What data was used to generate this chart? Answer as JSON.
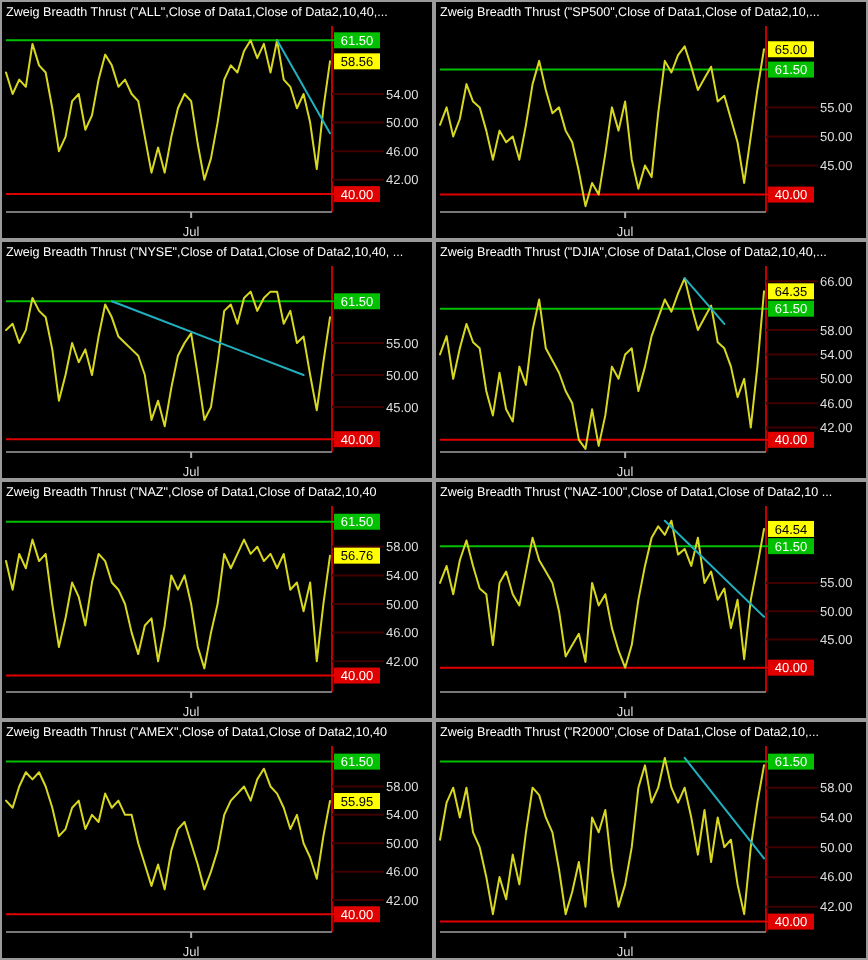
{
  "chart_data": [
    {
      "type": "line",
      "title": "Zweig Breadth Thrust (\"ALL\",Close of Data1,Close of Data2,10,40,...",
      "categories": [
        null,
        null,
        null,
        null,
        null,
        null,
        null,
        null,
        null,
        null,
        null,
        null,
        null,
        null,
        null,
        null,
        null,
        null,
        null,
        null,
        null,
        null,
        null,
        null,
        null,
        null,
        null,
        null,
        "Jul",
        null,
        null,
        null,
        null,
        null,
        null,
        null,
        null,
        null,
        null,
        null,
        null,
        null,
        null,
        null,
        null,
        null,
        null,
        null,
        null,
        null
      ],
      "ylim": [
        37.5,
        63.5
      ],
      "yticks": [
        {
          "value": 42,
          "label": "42.00"
        },
        {
          "value": 46,
          "label": "46.00"
        },
        {
          "value": 50,
          "label": "50.00"
        },
        {
          "value": 54,
          "label": "54.00"
        }
      ],
      "ref_lines": [
        {
          "axis": "y",
          "value": 61.5,
          "label": "61.50",
          "color": "#00c000"
        },
        {
          "axis": "y",
          "value": 40,
          "label": "40.00",
          "color": "#e00000"
        }
      ],
      "series": [
        {
          "type": "line",
          "color": "#d8d820",
          "values": [
            57,
            54,
            56,
            55,
            61,
            58,
            57,
            52,
            46,
            48,
            53,
            54,
            49,
            51,
            56,
            59.5,
            58,
            55,
            56,
            54,
            53,
            48,
            43,
            46.5,
            43,
            48,
            52,
            54,
            53,
            47,
            42,
            45,
            50,
            56,
            58,
            57,
            60,
            61.5,
            59,
            61,
            57,
            61.5,
            56,
            55,
            52,
            54,
            50,
            43.5,
            52,
            58.56
          ],
          "value_labels": [
            null,
            null,
            null,
            null,
            null,
            null,
            null,
            null,
            null,
            null,
            null,
            null,
            null,
            null,
            null,
            null,
            null,
            null,
            null,
            null,
            null,
            null,
            null,
            null,
            null,
            null,
            null,
            null,
            null,
            null,
            null,
            null,
            null,
            null,
            null,
            null,
            null,
            null,
            null,
            null,
            null,
            null,
            null,
            null,
            null,
            null,
            null,
            null,
            null,
            "58.56"
          ]
        },
        {
          "type": "line",
          "color": "#20b0c0",
          "values": [
            null,
            null,
            null,
            null,
            null,
            null,
            null,
            null,
            null,
            null,
            null,
            null,
            null,
            null,
            null,
            null,
            null,
            null,
            null,
            null,
            null,
            null,
            null,
            null,
            null,
            null,
            null,
            null,
            null,
            null,
            null,
            null,
            null,
            null,
            null,
            null,
            null,
            null,
            null,
            null,
            null,
            61.5,
            null,
            null,
            null,
            null,
            null,
            null,
            null,
            48.5
          ]
        }
      ]
    },
    {
      "type": "line",
      "title": "Zweig Breadth Thrust (\"SP500\",Close of Data1,Close of Data2,10,...",
      "categories": [
        null,
        null,
        null,
        null,
        null,
        null,
        null,
        null,
        null,
        null,
        null,
        null,
        null,
        null,
        null,
        null,
        null,
        null,
        null,
        null,
        null,
        null,
        null,
        null,
        null,
        null,
        null,
        null,
        "Jul",
        null,
        null,
        null,
        null,
        null,
        null,
        null,
        null,
        null,
        null,
        null,
        null,
        null,
        null,
        null,
        null,
        null,
        null,
        null,
        null,
        null
      ],
      "ylim": [
        37,
        69
      ],
      "yticks": [
        {
          "value": 45,
          "label": "45.00"
        },
        {
          "value": 50,
          "label": "50.00"
        },
        {
          "value": 55,
          "label": "55.00"
        }
      ],
      "ref_lines": [
        {
          "axis": "y",
          "value": 61.5,
          "label": "61.50",
          "color": "#00c000"
        },
        {
          "axis": "y",
          "value": 40,
          "label": "40.00",
          "color": "#e00000"
        }
      ],
      "series": [
        {
          "type": "line",
          "color": "#d8d820",
          "values": [
            52,
            55,
            50,
            53,
            59,
            56,
            55,
            51,
            46,
            51,
            49,
            50,
            46,
            52,
            59,
            63,
            58,
            54,
            55,
            51,
            49,
            44,
            38,
            42,
            40,
            47,
            55,
            51,
            56,
            46,
            41,
            45,
            43,
            54,
            63,
            61,
            64,
            65.5,
            62,
            58,
            60,
            62,
            56,
            57,
            53,
            49,
            42,
            50,
            58,
            65
          ],
          "value_labels": [
            null,
            null,
            null,
            null,
            null,
            null,
            null,
            null,
            null,
            null,
            null,
            null,
            null,
            null,
            null,
            null,
            null,
            null,
            null,
            null,
            null,
            null,
            null,
            null,
            null,
            null,
            null,
            null,
            null,
            null,
            null,
            null,
            null,
            null,
            null,
            null,
            null,
            null,
            null,
            null,
            null,
            null,
            null,
            null,
            null,
            null,
            null,
            null,
            null,
            "65.00"
          ]
        }
      ]
    },
    {
      "type": "line",
      "title": "Zweig Breadth Thrust (\"NYSE\",Close of Data1,Close of Data2,10,40, ...",
      "categories": [
        null,
        null,
        null,
        null,
        null,
        null,
        null,
        null,
        null,
        null,
        null,
        null,
        null,
        null,
        null,
        null,
        null,
        null,
        null,
        null,
        null,
        null,
        null,
        null,
        null,
        null,
        null,
        null,
        "Jul",
        null,
        null,
        null,
        null,
        null,
        null,
        null,
        null,
        null,
        null,
        null,
        null,
        null,
        null,
        null,
        null,
        null,
        null,
        null,
        null,
        null
      ],
      "ylim": [
        38,
        67
      ],
      "yticks": [
        {
          "value": 45,
          "label": "45.00"
        },
        {
          "value": 50,
          "label": "50.00"
        },
        {
          "value": 55,
          "label": "55.00"
        }
      ],
      "ref_lines": [
        {
          "axis": "y",
          "value": 61.5,
          "label": "61.50",
          "color": "#00c000"
        },
        {
          "axis": "y",
          "value": 40,
          "label": "40.00",
          "color": "#e00000"
        }
      ],
      "series": [
        {
          "type": "line",
          "color": "#d8d820",
          "values": [
            57,
            58,
            55,
            57,
            62,
            60,
            59,
            54,
            46,
            50,
            55,
            52,
            54,
            50,
            56,
            61,
            59,
            56,
            55,
            54,
            53,
            50,
            43,
            46,
            42,
            48,
            53,
            55,
            56.5,
            50,
            43,
            45,
            52,
            60,
            61,
            58,
            62,
            63,
            60,
            62,
            63,
            63,
            58,
            60,
            55,
            56,
            50,
            44.5,
            52,
            59
          ]
        },
        {
          "type": "line",
          "color": "#20b0c0",
          "values": [
            null,
            null,
            null,
            null,
            null,
            null,
            null,
            null,
            null,
            null,
            null,
            null,
            null,
            null,
            null,
            null,
            61.5,
            null,
            null,
            null,
            null,
            null,
            null,
            null,
            null,
            null,
            null,
            null,
            null,
            null,
            null,
            null,
            null,
            null,
            null,
            null,
            null,
            null,
            null,
            null,
            null,
            null,
            null,
            null,
            null,
            50,
            null,
            null,
            null,
            null
          ]
        }
      ]
    },
    {
      "type": "line",
      "title": "Zweig Breadth Thrust (\"DJIA\",Close of Data1,Close of Data2,10,40,...",
      "categories": [
        null,
        null,
        null,
        null,
        null,
        null,
        null,
        null,
        null,
        null,
        null,
        null,
        null,
        null,
        null,
        null,
        null,
        null,
        null,
        null,
        null,
        null,
        null,
        null,
        null,
        null,
        null,
        null,
        "Jul",
        null,
        null,
        null,
        null,
        null,
        null,
        null,
        null,
        null,
        null,
        null,
        null,
        null,
        null,
        null,
        null,
        null,
        null,
        null,
        null,
        null
      ],
      "ylim": [
        38,
        68.5
      ],
      "yticks": [
        {
          "value": 42,
          "label": "42.00"
        },
        {
          "value": 46,
          "label": "46.00"
        },
        {
          "value": 50,
          "label": "50.00"
        },
        {
          "value": 54,
          "label": "54.00"
        },
        {
          "value": 58,
          "label": "58.00"
        },
        {
          "value": 66,
          "label": "66.00"
        }
      ],
      "ref_lines": [
        {
          "axis": "y",
          "value": 61.5,
          "label": "61.50",
          "color": "#00c000"
        },
        {
          "axis": "y",
          "value": 40,
          "label": "40.00",
          "color": "#e00000"
        }
      ],
      "series": [
        {
          "type": "line",
          "color": "#d8d820",
          "values": [
            54,
            57,
            50,
            55,
            59,
            56,
            55,
            48,
            44,
            51,
            45,
            43,
            52,
            49,
            58,
            63,
            55,
            53,
            51,
            48,
            46,
            40,
            38.5,
            45,
            39,
            44,
            52,
            50,
            54,
            55,
            48,
            52,
            57,
            60,
            63,
            61,
            64,
            66.5,
            62,
            58,
            60,
            62,
            56,
            55,
            52,
            47,
            50,
            42,
            52,
            64.35
          ],
          "value_labels": [
            null,
            null,
            null,
            null,
            null,
            null,
            null,
            null,
            null,
            null,
            null,
            null,
            null,
            null,
            null,
            null,
            null,
            null,
            null,
            null,
            null,
            null,
            null,
            null,
            null,
            null,
            null,
            null,
            null,
            null,
            null,
            null,
            null,
            null,
            null,
            null,
            null,
            null,
            null,
            null,
            null,
            null,
            null,
            null,
            null,
            null,
            null,
            null,
            null,
            "64.35"
          ]
        },
        {
          "type": "line",
          "color": "#20b0c0",
          "values": [
            null,
            null,
            null,
            null,
            null,
            null,
            null,
            null,
            null,
            null,
            null,
            null,
            null,
            null,
            null,
            null,
            null,
            null,
            null,
            null,
            null,
            null,
            null,
            null,
            null,
            null,
            null,
            null,
            null,
            null,
            null,
            null,
            null,
            null,
            null,
            null,
            null,
            66.5,
            null,
            null,
            null,
            null,
            null,
            59,
            null,
            null,
            null,
            null,
            null,
            null
          ]
        }
      ]
    },
    {
      "type": "line",
      "title": "Zweig Breadth Thrust (\"NAZ\",Close of Data1,Close of Data2,10,40",
      "categories": [
        null,
        null,
        null,
        null,
        null,
        null,
        null,
        null,
        null,
        null,
        null,
        null,
        null,
        null,
        null,
        null,
        null,
        null,
        null,
        null,
        null,
        null,
        null,
        null,
        null,
        null,
        null,
        null,
        "Jul",
        null,
        null,
        null,
        null,
        null,
        null,
        null,
        null,
        null,
        null,
        null,
        null,
        null,
        null,
        null,
        null,
        null,
        null,
        null,
        null,
        null
      ],
      "ylim": [
        37.7,
        63.7
      ],
      "yticks": [
        {
          "value": 42,
          "label": "42.00"
        },
        {
          "value": 46,
          "label": "46.00"
        },
        {
          "value": 50,
          "label": "50.00"
        },
        {
          "value": 54,
          "label": "54.00"
        },
        {
          "value": 58,
          "label": "58.00"
        }
      ],
      "ref_lines": [
        {
          "axis": "y",
          "value": 61.5,
          "label": "61.50",
          "color": "#00c000"
        },
        {
          "axis": "y",
          "value": 40,
          "label": "40.00",
          "color": "#e00000"
        }
      ],
      "series": [
        {
          "type": "line",
          "color": "#d8d820",
          "values": [
            56,
            52,
            57,
            55,
            59,
            56,
            57,
            50,
            44,
            48,
            53,
            51,
            47,
            53,
            57,
            56,
            53,
            52,
            50,
            46,
            43,
            47,
            48,
            42,
            47,
            54,
            52,
            54,
            50,
            44,
            41,
            46,
            50,
            57,
            55,
            57,
            59,
            57,
            58,
            56,
            57,
            55,
            57,
            52,
            53,
            49,
            53,
            42,
            50,
            56.76
          ],
          "value_labels": [
            null,
            null,
            null,
            null,
            null,
            null,
            null,
            null,
            null,
            null,
            null,
            null,
            null,
            null,
            null,
            null,
            null,
            null,
            null,
            null,
            null,
            null,
            null,
            null,
            null,
            null,
            null,
            null,
            null,
            null,
            null,
            null,
            null,
            null,
            null,
            null,
            null,
            null,
            null,
            null,
            null,
            null,
            null,
            null,
            null,
            null,
            null,
            null,
            null,
            "56.76"
          ]
        }
      ]
    },
    {
      "type": "line",
      "title": "Zweig Breadth Thrust (\"NAZ-100\",Close of Data1,Close of Data2,10 ...",
      "categories": [
        null,
        null,
        null,
        null,
        null,
        null,
        null,
        null,
        null,
        null,
        null,
        null,
        null,
        null,
        null,
        null,
        null,
        null,
        null,
        null,
        null,
        null,
        null,
        null,
        null,
        null,
        null,
        null,
        "Jul",
        null,
        null,
        null,
        null,
        null,
        null,
        null,
        null,
        null,
        null,
        null,
        null,
        null,
        null,
        null,
        null,
        null,
        null,
        null,
        null,
        null
      ],
      "ylim": [
        35.7,
        68.6
      ],
      "yticks": [
        {
          "value": 45,
          "label": "45.00"
        },
        {
          "value": 50,
          "label": "50.00"
        },
        {
          "value": 55,
          "label": "55.00"
        }
      ],
      "ref_lines": [
        {
          "axis": "y",
          "value": 61.5,
          "label": "61.50",
          "color": "#00c000"
        },
        {
          "axis": "y",
          "value": 40,
          "label": "40.00",
          "color": "#e00000"
        }
      ],
      "series": [
        {
          "type": "line",
          "color": "#d8d820",
          "values": [
            55,
            58,
            53,
            59,
            62.5,
            58,
            54,
            53,
            44,
            55,
            57,
            53,
            51,
            57,
            63,
            59,
            57,
            55,
            50,
            42,
            44,
            46,
            41,
            55,
            51,
            53,
            47,
            43,
            40,
            44,
            52,
            58,
            63,
            65,
            63.5,
            66,
            60,
            61,
            58,
            63,
            55,
            57,
            52,
            54,
            47,
            52,
            41.5,
            52,
            58,
            64.54
          ],
          "value_labels": [
            null,
            null,
            null,
            null,
            null,
            null,
            null,
            null,
            null,
            null,
            null,
            null,
            null,
            null,
            null,
            null,
            null,
            null,
            null,
            null,
            null,
            null,
            null,
            null,
            null,
            null,
            null,
            null,
            null,
            null,
            null,
            null,
            null,
            null,
            null,
            null,
            null,
            null,
            null,
            null,
            null,
            null,
            null,
            null,
            null,
            null,
            null,
            null,
            null,
            "64.54"
          ]
        },
        {
          "type": "line",
          "color": "#20b0c0",
          "values": [
            null,
            null,
            null,
            null,
            null,
            null,
            null,
            null,
            null,
            null,
            null,
            null,
            null,
            null,
            null,
            null,
            null,
            null,
            null,
            null,
            null,
            null,
            null,
            null,
            null,
            null,
            null,
            null,
            null,
            null,
            null,
            null,
            null,
            null,
            66,
            null,
            null,
            null,
            null,
            null,
            null,
            null,
            null,
            null,
            null,
            null,
            null,
            null,
            null,
            49
          ]
        }
      ]
    },
    {
      "type": "line",
      "title": "Zweig Breadth Thrust (\"AMEX\",Close of Data1,Close of Data2,10,40",
      "categories": [
        null,
        null,
        null,
        null,
        null,
        null,
        null,
        null,
        null,
        null,
        null,
        null,
        null,
        null,
        null,
        null,
        null,
        null,
        null,
        null,
        null,
        null,
        null,
        null,
        null,
        null,
        null,
        null,
        "Jul",
        null,
        null,
        null,
        null,
        null,
        null,
        null,
        null,
        null,
        null,
        null,
        null,
        null,
        null,
        null,
        null,
        null,
        null,
        null,
        null,
        null
      ],
      "ylim": [
        37.5,
        63.7
      ],
      "yticks": [
        {
          "value": 42,
          "label": "42.00"
        },
        {
          "value": 46,
          "label": "46.00"
        },
        {
          "value": 50,
          "label": "50.00"
        },
        {
          "value": 54,
          "label": "54.00"
        },
        {
          "value": 58,
          "label": "58.00"
        }
      ],
      "ref_lines": [
        {
          "axis": "y",
          "value": 61.5,
          "label": "61.50",
          "color": "#00c000"
        },
        {
          "axis": "y",
          "value": 40,
          "label": "40.00",
          "color": "#e00000"
        }
      ],
      "series": [
        {
          "type": "line",
          "color": "#d8d820",
          "values": [
            56,
            55,
            58,
            60,
            59,
            60,
            58,
            55,
            51,
            52,
            55,
            56,
            52,
            54,
            53,
            57,
            55,
            56,
            54,
            54,
            50,
            47,
            44,
            47,
            43.5,
            49,
            52,
            53,
            50,
            47,
            43.5,
            46,
            49,
            54,
            56,
            57,
            58,
            56,
            59,
            60.5,
            58,
            57,
            55,
            52,
            54,
            50,
            48,
            45,
            51,
            55.95
          ],
          "value_labels": [
            null,
            null,
            null,
            null,
            null,
            null,
            null,
            null,
            null,
            null,
            null,
            null,
            null,
            null,
            null,
            null,
            null,
            null,
            null,
            null,
            null,
            null,
            null,
            null,
            null,
            null,
            null,
            null,
            null,
            null,
            null,
            null,
            null,
            null,
            null,
            null,
            null,
            null,
            null,
            null,
            null,
            null,
            null,
            null,
            null,
            null,
            null,
            null,
            null,
            "55.95"
          ]
        }
      ]
    },
    {
      "type": "line",
      "title": "Zweig Breadth Thrust (\"R2000\",Close of Data1,Close of Data2,10,...",
      "categories": [
        null,
        null,
        null,
        null,
        null,
        null,
        null,
        null,
        null,
        null,
        null,
        null,
        null,
        null,
        null,
        null,
        null,
        null,
        null,
        null,
        null,
        null,
        null,
        null,
        null,
        null,
        null,
        null,
        "Jul",
        null,
        null,
        null,
        null,
        null,
        null,
        null,
        null,
        null,
        null,
        null,
        null,
        null,
        null,
        null,
        null,
        null,
        null,
        null,
        null,
        null
      ],
      "ylim": [
        38.6,
        63.6
      ],
      "yticks": [
        {
          "value": 42,
          "label": "42.00"
        },
        {
          "value": 46,
          "label": "46.00"
        },
        {
          "value": 50,
          "label": "50.00"
        },
        {
          "value": 54,
          "label": "54.00"
        },
        {
          "value": 58,
          "label": "58.00"
        }
      ],
      "ref_lines": [
        {
          "axis": "y",
          "value": 61.5,
          "label": "61.50",
          "color": "#00c000"
        },
        {
          "axis": "y",
          "value": 40,
          "label": "40.00",
          "color": "#e00000"
        }
      ],
      "series": [
        {
          "type": "line",
          "color": "#d8d820",
          "values": [
            51,
            56,
            58,
            54,
            58,
            52,
            50,
            46,
            41,
            46,
            43,
            49,
            45,
            52,
            58,
            57,
            54,
            52,
            47,
            41,
            44,
            48,
            42,
            54,
            52,
            55,
            47,
            42,
            45,
            50,
            58,
            61,
            56,
            58,
            62,
            58,
            56,
            58,
            54,
            49,
            55,
            48,
            54,
            50,
            51,
            45,
            41,
            50,
            56,
            61
          ]
        },
        {
          "type": "line",
          "color": "#20b0c0",
          "values": [
            null,
            null,
            null,
            null,
            null,
            null,
            null,
            null,
            null,
            null,
            null,
            null,
            null,
            null,
            null,
            null,
            null,
            null,
            null,
            null,
            null,
            null,
            null,
            null,
            null,
            null,
            null,
            null,
            null,
            null,
            null,
            null,
            null,
            null,
            null,
            null,
            null,
            62,
            null,
            null,
            null,
            null,
            null,
            null,
            null,
            null,
            null,
            null,
            null,
            48.5
          ]
        }
      ]
    }
  ]
}
